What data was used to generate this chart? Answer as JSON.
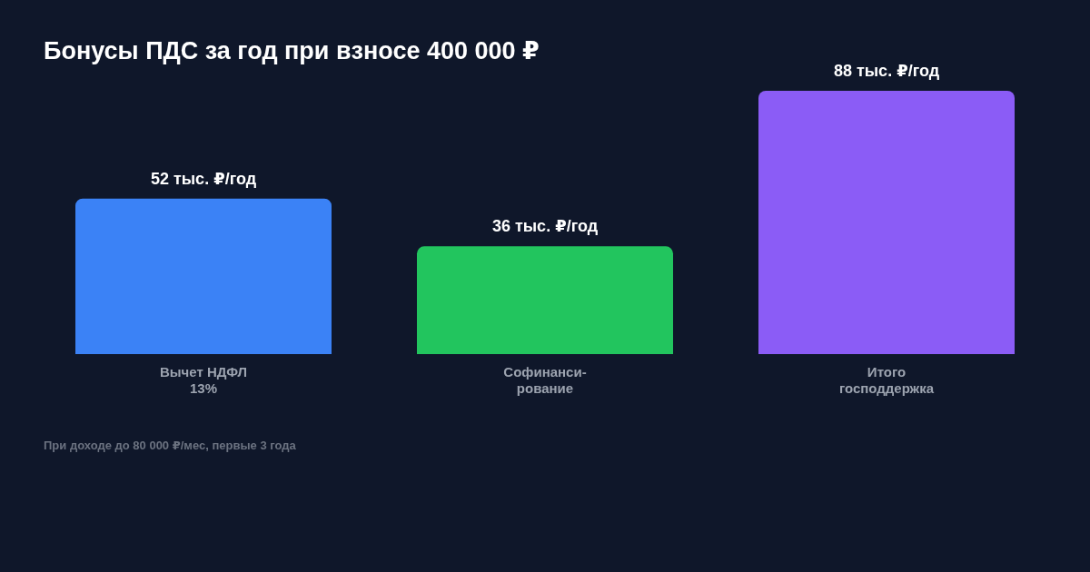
{
  "chart_data": {
    "type": "bar",
    "title": "Бонусы ПДС за год при взносе 400 000 ₽",
    "categories": [
      "Вычет НДФЛ\n13%",
      "Софинанси-\nрование",
      "Итого\nгосподдержка"
    ],
    "values": [
      52,
      36,
      88
    ],
    "colors": [
      "#3b82f6",
      "#22c55e",
      "#8b5cf6"
    ],
    "value_labels": [
      "52 тыс. ₽/год",
      "36 тыс. ₽/год",
      "88 тыс. ₽/год"
    ],
    "annotations": [
      "При доходе до 80 000 ₽/мес, первые 3 года"
    ],
    "legend": false
  }
}
